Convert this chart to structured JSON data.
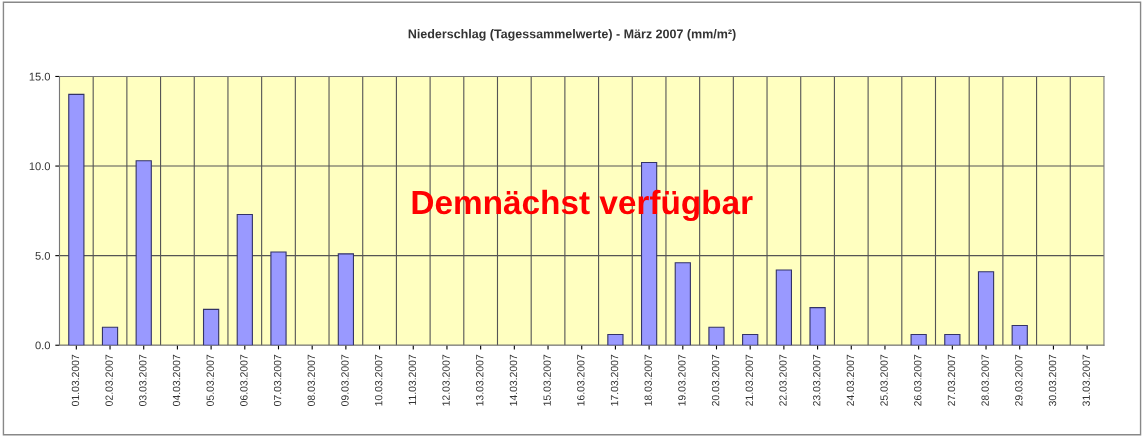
{
  "chart_data": {
    "type": "bar",
    "title": "Niederschlag (Tagessammelwerte) - März 2007 (mm/m²)",
    "categories": [
      "01.03.2007",
      "02.03.2007",
      "03.03.2007",
      "04.03.2007",
      "05.03.2007",
      "06.03.2007",
      "07.03.2007",
      "08.03.2007",
      "09.03.2007",
      "10.03.2007",
      "11.03.2007",
      "12.03.2007",
      "13.03.2007",
      "14.03.2007",
      "15.03.2007",
      "16.03.2007",
      "17.03.2007",
      "18.03.2007",
      "19.03.2007",
      "20.03.2007",
      "21.03.2007",
      "22.03.2007",
      "23.03.2007",
      "24.03.2007",
      "25.03.2007",
      "26.03.2007",
      "27.03.2007",
      "28.03.2007",
      "29.03.2007",
      "30.03.2007",
      "31.03.2007"
    ],
    "values": [
      14.0,
      1.0,
      10.3,
      0,
      2.0,
      7.3,
      5.2,
      0,
      5.1,
      0,
      0,
      0,
      0,
      0,
      0,
      0,
      0.6,
      10.2,
      4.6,
      1.0,
      0.6,
      4.2,
      2.1,
      0,
      0,
      0.6,
      0.6,
      4.1,
      1.1,
      0,
      0
    ],
    "color": "#9999ff",
    "ylim": [
      0,
      15
    ],
    "yticks": [
      {
        "value": 0,
        "label": "0.0"
      },
      {
        "value": 5,
        "label": "5.0"
      },
      {
        "value": 10,
        "label": "10.0"
      },
      {
        "value": 15,
        "label": "15.0"
      }
    ],
    "grid": true,
    "legend": false,
    "annotations": [
      "Demnächst verfügbar"
    ]
  }
}
